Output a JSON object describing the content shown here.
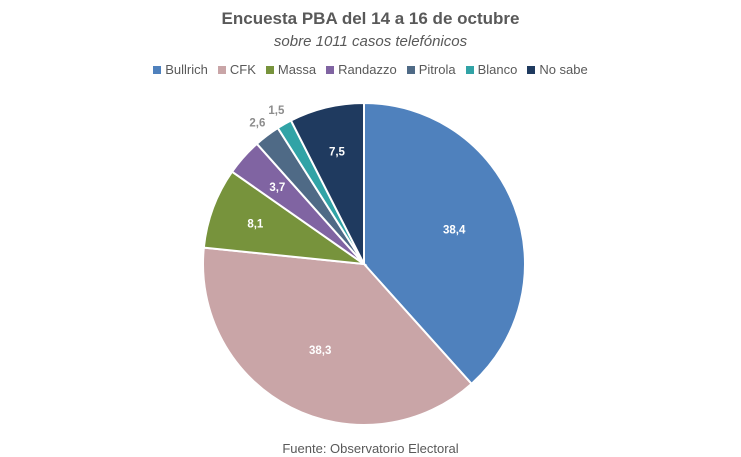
{
  "chart_data": {
    "type": "pie",
    "title": "Encuesta PBA del 14 a 16 de octubre",
    "subtitle": "sobre 1011 casos telefónicos",
    "source": "Fuente: Observatorio Electoral",
    "legend_position": "top",
    "categories": [
      "Bullrich",
      "CFK",
      "Massa",
      "Randazzo",
      "Pitrola",
      "Blanco",
      "No sabe"
    ],
    "values": [
      38.4,
      38.3,
      8.1,
      3.7,
      2.6,
      1.5,
      7.5
    ],
    "labels": [
      "38,4",
      "38,3",
      "8,1",
      "3,7",
      "2,6",
      "1,5",
      "7,5"
    ],
    "colors": [
      "#4f81bd",
      "#c9a5a7",
      "#77933c",
      "#8064a2",
      "#4f6a86",
      "#31a3a6",
      "#1f3a5f"
    ]
  }
}
